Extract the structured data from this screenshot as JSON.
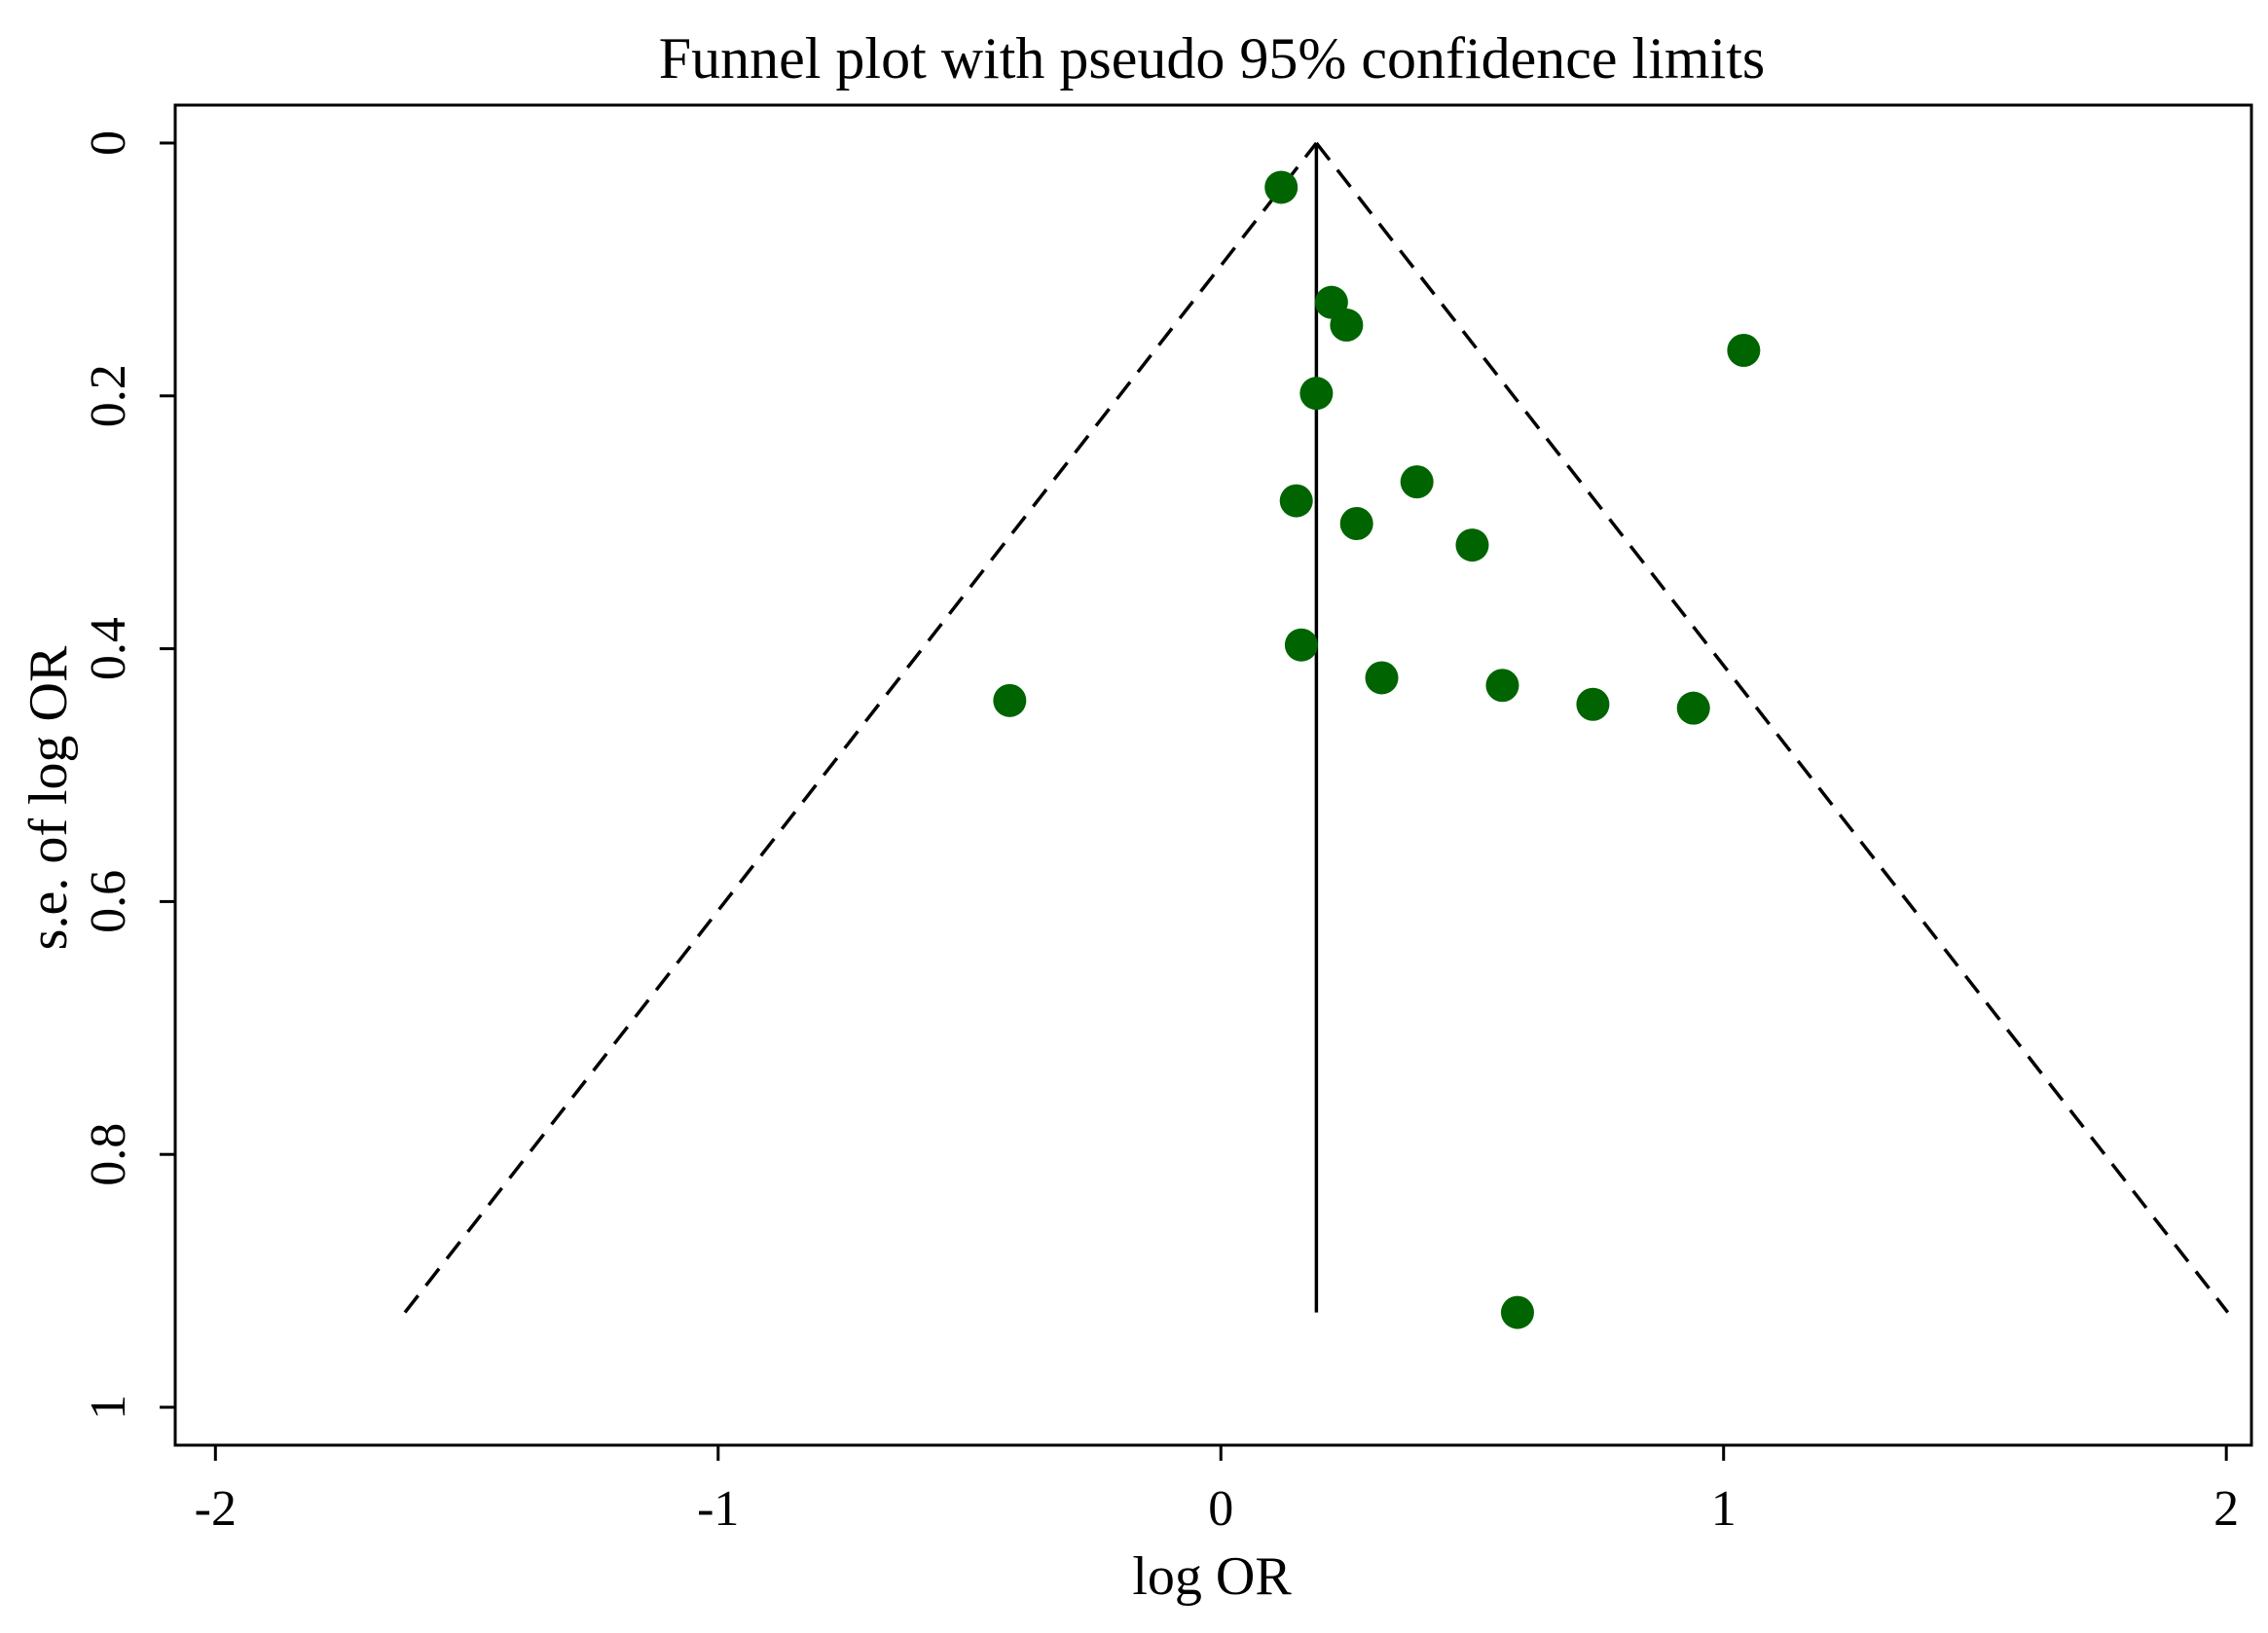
{
  "chart_data": {
    "type": "scatter",
    "title": "Funnel plot with pseudo 95% confidence limits",
    "xlabel": "log OR",
    "ylabel": "s.e. of log OR",
    "xlim": [
      -2.08,
      2.05
    ],
    "ylim": [
      -0.03,
      1.03
    ],
    "y_reversed": true,
    "xticks": [
      -2,
      -1,
      0,
      1,
      2
    ],
    "xtick_labels": [
      "-2",
      "-1",
      "0",
      "1",
      "2"
    ],
    "yticks": [
      0,
      0.2,
      0.4,
      0.6,
      0.8,
      1
    ],
    "ytick_labels": [
      "0",
      "0.2",
      "0.4",
      "0.6",
      "0.8",
      "1"
    ],
    "grid": false,
    "pooled_estimate": 0.19,
    "funnel_max_se": 0.925,
    "marker_color": "#006400",
    "points": [
      {
        "x": 0.12,
        "y": 0.035
      },
      {
        "x": 0.22,
        "y": 0.126
      },
      {
        "x": 0.25,
        "y": 0.144
      },
      {
        "x": 1.04,
        "y": 0.164
      },
      {
        "x": 0.19,
        "y": 0.198
      },
      {
        "x": 0.39,
        "y": 0.268
      },
      {
        "x": 0.15,
        "y": 0.283
      },
      {
        "x": 0.27,
        "y": 0.301
      },
      {
        "x": 0.5,
        "y": 0.318
      },
      {
        "x": 0.16,
        "y": 0.397
      },
      {
        "x": 0.32,
        "y": 0.423
      },
      {
        "x": 0.56,
        "y": 0.429
      },
      {
        "x": 0.74,
        "y": 0.444
      },
      {
        "x": 0.94,
        "y": 0.447
      },
      {
        "x": -0.42,
        "y": 0.441
      },
      {
        "x": 0.59,
        "y": 0.925
      }
    ]
  }
}
